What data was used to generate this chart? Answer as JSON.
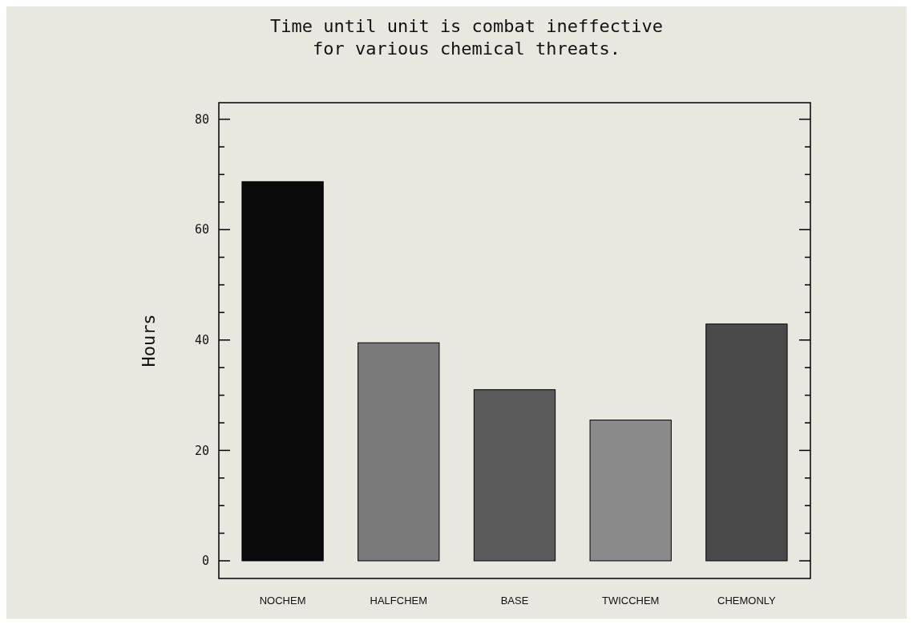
{
  "chart_data": {
    "type": "bar",
    "title": "Time until unit is combat ineffective\nfor various chemical threats.",
    "ylabel": "Hours",
    "categories": [
      "NOCHEM",
      "HALFCHEM",
      "BASE",
      "TWICCHEM",
      "CHEMONLY"
    ],
    "values": [
      68.7,
      39.5,
      31.0,
      25.5,
      42.9
    ],
    "colors": [
      "#0a0a0a",
      "#7a7a7a",
      "#5a5a5a",
      "#8a8a8a",
      "#4a4a4a"
    ],
    "ylim": [
      -3.2,
      83
    ],
    "yticks": [
      0,
      {
        "value": 5,
        "label": null
      },
      {
        "value": 10,
        "label": null
      },
      {
        "value": 15,
        "label": null
      },
      20,
      {
        "value": 25,
        "label": null
      },
      {
        "value": 30,
        "label": null
      },
      {
        "value": 35,
        "label": null
      },
      40,
      {
        "value": 45,
        "label": null
      },
      {
        "value": 50,
        "label": null
      },
      {
        "value": 55,
        "label": null
      },
      60,
      {
        "value": 65,
        "label": null
      },
      {
        "value": 70,
        "label": null
      },
      {
        "value": 75,
        "label": null
      },
      80
    ],
    "grid": false
  }
}
